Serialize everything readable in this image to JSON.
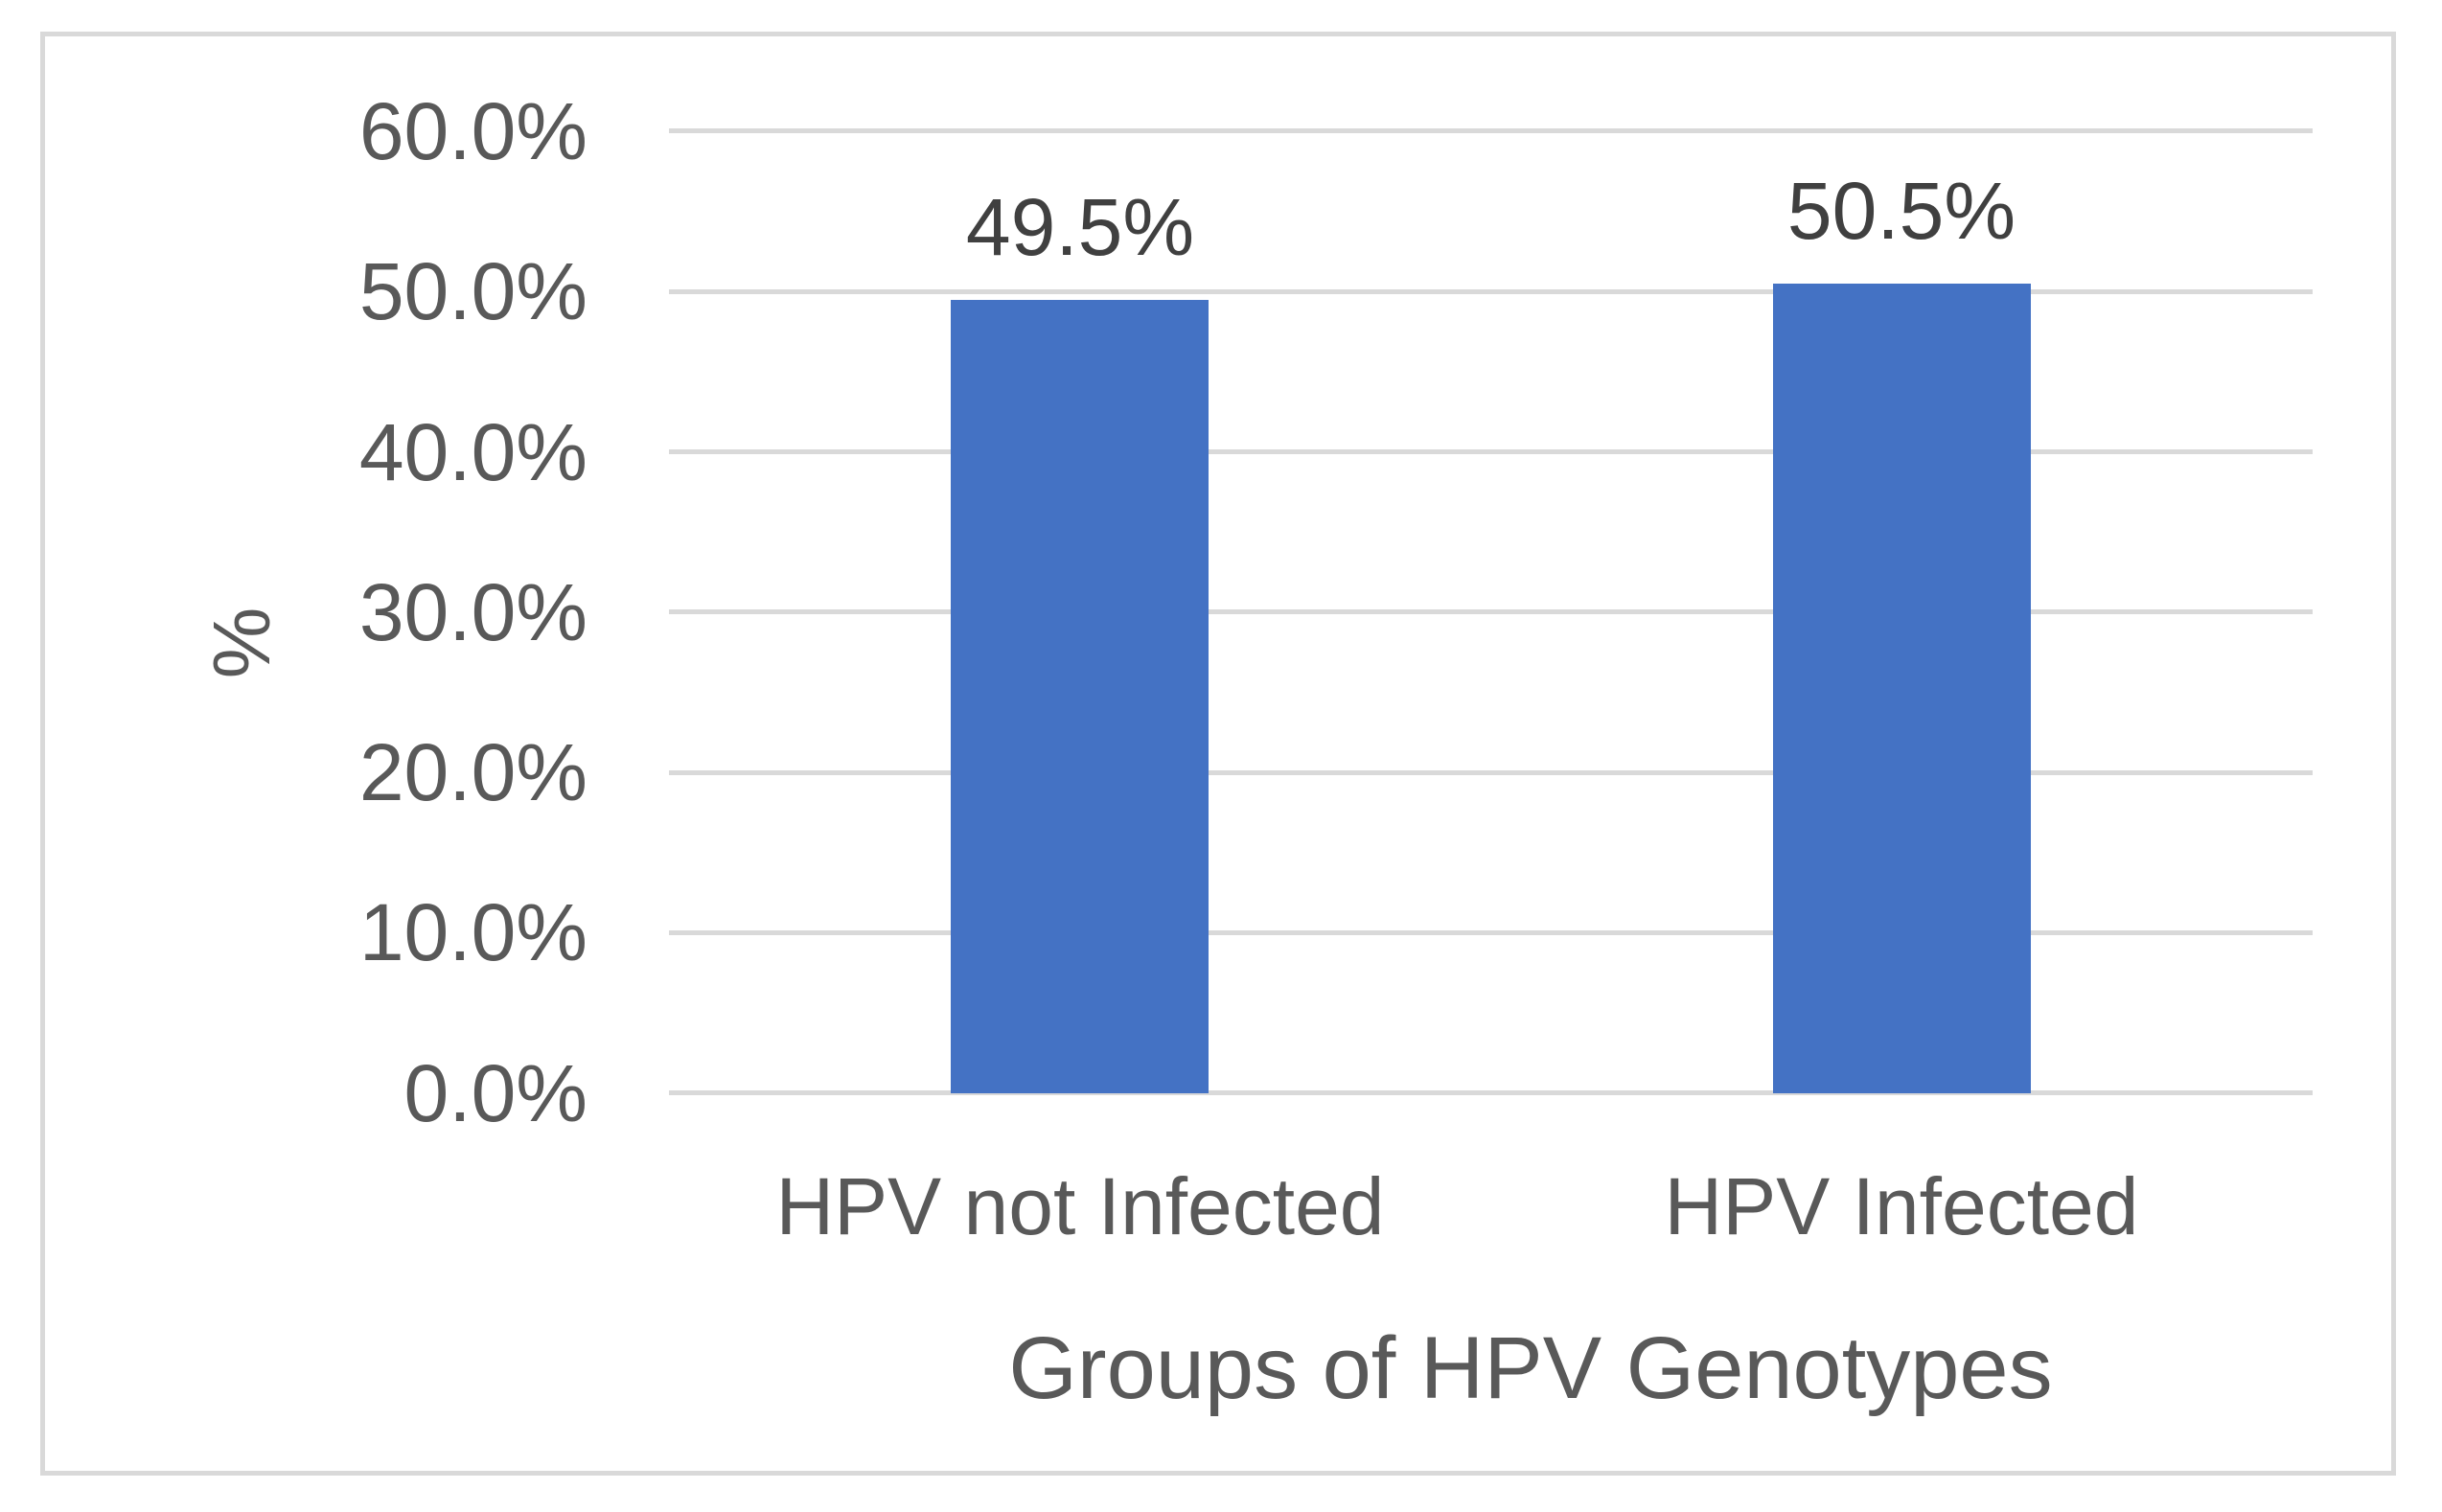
{
  "chart_data": {
    "type": "bar",
    "categories": [
      "HPV not Infected",
      "HPV Infected"
    ],
    "values": [
      49.5,
      50.5
    ],
    "data_labels": [
      "49.5%",
      "50.5%"
    ],
    "title": "",
    "xlabel": "Groups of HPV Genotypes",
    "ylabel": "%",
    "ylim": [
      0,
      60
    ],
    "ytick_interval": 10,
    "ytick_labels": [
      "0.0%",
      "10.0%",
      "20.0%",
      "30.0%",
      "40.0%",
      "50.0%",
      "60.0%"
    ],
    "grid": "horizontal",
    "legend_position": "none",
    "bar_color": "#4472C4"
  },
  "colors": {
    "bar_fill": "#4472C4",
    "gridline": "#D9D9D9",
    "frame_border": "#D9D9D9",
    "axis_text": "#595959",
    "data_label_text": "#404040",
    "background": "#FFFFFF"
  }
}
